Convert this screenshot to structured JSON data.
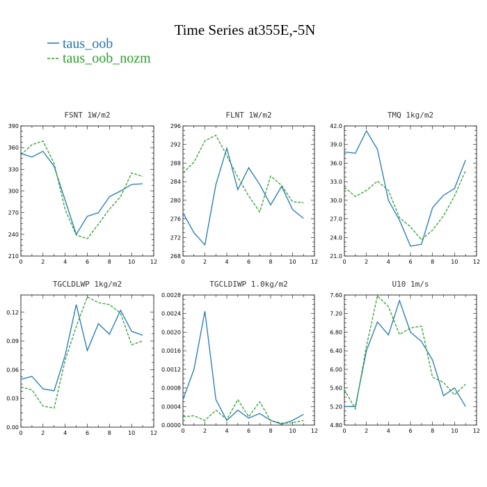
{
  "figure_title": "Time Series at355E,-5N",
  "colors": {
    "series1": "#1f77b4",
    "series2": "#2ca02c"
  },
  "legend": [
    {
      "name": "taus_oob",
      "color": "#1f77b4",
      "dash": "solid"
    },
    {
      "name": "taus_oob_nozm",
      "color": "#2ca02c",
      "dash": "dashed"
    }
  ],
  "chart_data": [
    {
      "type": "line",
      "title": "FSNT   1W/m2",
      "xlim": [
        0,
        12
      ],
      "xticks": [
        "0",
        "2",
        "4",
        "6",
        "8",
        "10",
        "12"
      ],
      "ylim": [
        210,
        390
      ],
      "yticks": [
        "210",
        "240",
        "270",
        "300",
        "330",
        "360",
        "390"
      ],
      "x": [
        0,
        1,
        2,
        3,
        4,
        5,
        6,
        7,
        8,
        9,
        10,
        11
      ],
      "series": [
        {
          "name": "taus_oob",
          "values": [
            352,
            347,
            355,
            334,
            287,
            240,
            265,
            270,
            292,
            300,
            309,
            310
          ]
        },
        {
          "name": "taus_oob_nozm",
          "values": [
            350,
            364,
            369,
            338,
            274,
            239,
            234,
            254,
            275,
            292,
            325,
            320
          ]
        }
      ]
    },
    {
      "type": "line",
      "title": "FLNT   1W/m2",
      "xlim": [
        0,
        12
      ],
      "xticks": [
        "0",
        "2",
        "4",
        "6",
        "8",
        "10",
        "12"
      ],
      "ylim": [
        268,
        296
      ],
      "yticks": [
        "268",
        "272",
        "276",
        "280",
        "284",
        "288",
        "292",
        "296"
      ],
      "x": [
        0,
        1,
        2,
        3,
        4,
        5,
        6,
        7,
        8,
        9,
        10,
        11
      ],
      "series": [
        {
          "name": "taus_oob",
          "values": [
            277.3,
            273.0,
            270.4,
            283.4,
            291.2,
            282.3,
            287.0,
            283.4,
            279.0,
            283.0,
            278.0,
            276.1
          ]
        },
        {
          "name": "taus_oob_nozm",
          "values": [
            285.9,
            288.2,
            292.8,
            294.0,
            289.6,
            285.0,
            280.9,
            277.5,
            285.2,
            283.2,
            279.7,
            279.5
          ]
        }
      ]
    },
    {
      "type": "line",
      "title": "TMQ   1kg/m2",
      "xlim": [
        0,
        12
      ],
      "xticks": [
        "0",
        "2",
        "4",
        "6",
        "8",
        "10",
        "12"
      ],
      "ylim": [
        21.0,
        42.0
      ],
      "yticks": [
        "21.0",
        "24.0",
        "27.0",
        "30.0",
        "33.0",
        "36.0",
        "39.0",
        "42.0"
      ],
      "x": [
        0,
        1,
        2,
        3,
        4,
        5,
        6,
        7,
        8,
        9,
        10,
        11
      ],
      "series": [
        {
          "name": "taus_oob",
          "values": [
            37.8,
            37.6,
            41.2,
            38.2,
            30.0,
            26.8,
            22.6,
            22.9,
            28.8,
            30.8,
            31.9,
            36.5
          ]
        },
        {
          "name": "taus_oob_nozm",
          "values": [
            32.1,
            30.6,
            31.6,
            33.1,
            31.6,
            27.2,
            25.7,
            23.6,
            25.2,
            27.5,
            30.7,
            34.8
          ]
        }
      ]
    },
    {
      "type": "line",
      "title": "TGCLDLWP   1kg/m2",
      "xlim": [
        0,
        12
      ],
      "xticks": [
        "0",
        "2",
        "4",
        "6",
        "8",
        "10",
        "12"
      ],
      "ylim": [
        0,
        0.138
      ],
      "yticks": [
        "0.00",
        "0.03",
        "0.06",
        "0.09",
        "0.12"
      ],
      "yticks_values": [
        0,
        0.03,
        0.06,
        0.09,
        0.12
      ],
      "x": [
        0,
        1,
        2,
        3,
        4,
        5,
        6,
        7,
        8,
        9,
        10,
        11
      ],
      "series": [
        {
          "name": "taus_oob",
          "values": [
            0.05,
            0.053,
            0.04,
            0.038,
            0.075,
            0.128,
            0.08,
            0.108,
            0.097,
            0.122,
            0.1,
            0.096
          ]
        },
        {
          "name": "taus_oob_nozm",
          "values": [
            0.042,
            0.039,
            0.022,
            0.02,
            0.07,
            0.105,
            0.136,
            0.13,
            0.128,
            0.119,
            0.086,
            0.09
          ]
        }
      ]
    },
    {
      "type": "line",
      "title": "TGCLDIWP   1.0kg/m2",
      "xlim": [
        0,
        12
      ],
      "xticks": [
        "0",
        "2",
        "4",
        "6",
        "8",
        "10",
        "12"
      ],
      "ylim": [
        0,
        0.0028
      ],
      "yticks": [
        "0.0000",
        "0.0004",
        "0.0008",
        "0.0012",
        "0.0016",
        "0.0020",
        "0.0024",
        "0.0028"
      ],
      "x": [
        0,
        1,
        2,
        3,
        4,
        5,
        6,
        7,
        8,
        9,
        10,
        11
      ],
      "series": [
        {
          "name": "taus_oob",
          "values": [
            0.00055,
            0.0012,
            0.00245,
            0.00055,
            0.0001,
            0.00032,
            0.00015,
            0.00025,
            0.0001,
            2e-05,
            0.0001,
            0.00023
          ]
        },
        {
          "name": "taus_oob_nozm",
          "values": [
            0.00018,
            0.0002,
            0.0001,
            0.00032,
            0.00012,
            0.00055,
            0.00018,
            0.0005,
            0.0001,
            4e-05,
            5e-05,
            0.0001
          ]
        }
      ]
    },
    {
      "type": "line",
      "title": "U10   1m/s",
      "xlim": [
        0,
        12
      ],
      "xticks": [
        "0",
        "2",
        "4",
        "6",
        "8",
        "10",
        "12"
      ],
      "ylim": [
        4.8,
        7.6
      ],
      "yticks": [
        "4.80",
        "5.20",
        "5.60",
        "6.00",
        "6.40",
        "6.80",
        "7.20",
        "7.60"
      ],
      "x": [
        0,
        1,
        2,
        3,
        4,
        5,
        6,
        7,
        8,
        9,
        10,
        11
      ],
      "series": [
        {
          "name": "taus_oob",
          "values": [
            5.2,
            5.2,
            6.4,
            7.02,
            6.74,
            7.48,
            6.8,
            6.6,
            6.2,
            5.43,
            5.6,
            5.2
          ]
        },
        {
          "name": "taus_oob_nozm",
          "values": [
            5.56,
            5.15,
            6.5,
            7.58,
            7.35,
            6.75,
            6.89,
            6.93,
            5.83,
            5.72,
            5.45,
            5.68
          ]
        }
      ]
    }
  ]
}
